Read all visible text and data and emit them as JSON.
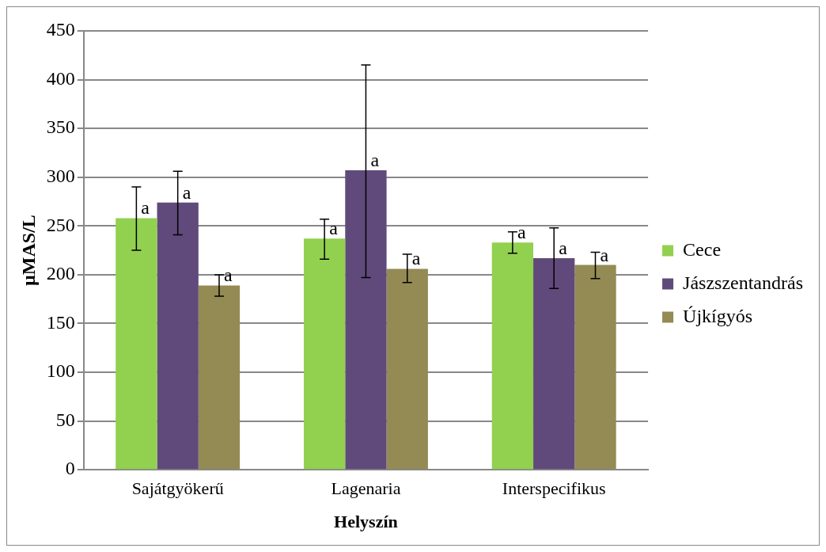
{
  "chart_data": {
    "type": "bar",
    "xlabel": "Helyszín",
    "ylabel": "µMAS/L",
    "categories": [
      "Sajátgyökerű",
      "Lagenaria",
      "Interspecifikus"
    ],
    "series": [
      {
        "name": "Cece",
        "color": "#92d050",
        "values": [
          258,
          237,
          233
        ],
        "errors": [
          [
            225,
            290
          ],
          [
            216,
            257
          ],
          [
            222,
            244
          ]
        ],
        "value_labels": [
          "a",
          "a",
          "a"
        ]
      },
      {
        "name": "Jászszentandrás",
        "color": "#604a7b",
        "values": [
          274,
          307,
          217
        ],
        "errors": [
          [
            241,
            306
          ],
          [
            197,
            415
          ],
          [
            186,
            248
          ]
        ],
        "value_labels": [
          "a",
          "a",
          "a"
        ]
      },
      {
        "name": "Újkígyós",
        "color": "#948a54",
        "values": [
          189,
          206,
          210
        ],
        "errors": [
          [
            178,
            200
          ],
          [
            192,
            221
          ],
          [
            196,
            223
          ]
        ],
        "value_labels": [
          "a",
          "a",
          "a"
        ]
      }
    ],
    "ylim": [
      0,
      450
    ],
    "yticks": [
      0,
      50,
      100,
      150,
      200,
      250,
      300,
      350,
      400,
      450
    ],
    "grid": "y",
    "legend": "right"
  }
}
